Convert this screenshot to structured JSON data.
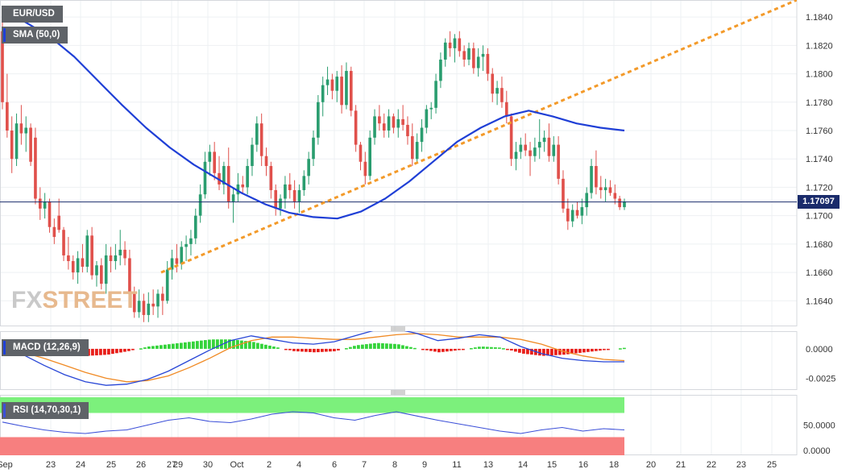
{
  "header": {
    "symbol": "EUR/USD",
    "indicator_main": "SMA (50,0)",
    "indicator_macd": "MACD (12,26,9)",
    "indicator_rsi": "RSI (14,70,30,1)"
  },
  "current_price": "1.17097",
  "watermark": {
    "part1": "FX",
    "part2": "STREET"
  },
  "colors": {
    "up": "#2a9d6f",
    "down": "#e0504b",
    "sma": "#1f3fd6",
    "trendline": "#f39a2a",
    "price_line": "#1a2b6b",
    "macd_line": "#2846d6",
    "signal_line": "#f08a24",
    "hist_pos": "#34d33a",
    "hist_neg": "#e8201b",
    "rsi_line": "#3b4fd8",
    "rsi_overbought": "#7cf07c",
    "rsi_oversold": "#f77f7f"
  },
  "x_axis": {
    "labels": [
      "Sep",
      "23",
      "24",
      "25",
      "26",
      "27",
      "29",
      "30",
      "Oct",
      "2",
      "4",
      "6",
      "7",
      "8",
      "9",
      "11",
      "13",
      "14",
      "15",
      "16",
      "18",
      "20",
      "21",
      "22",
      "23",
      "25"
    ]
  },
  "chart_data": [
    {
      "type": "candlestick",
      "name": "EUR/USD",
      "ylim": [
        1.1622,
        1.1852
      ],
      "y_ticks": [
        "1.1640",
        "1.1660",
        "1.1680",
        "1.1700",
        "1.1720",
        "1.1740",
        "1.1760",
        "1.1780",
        "1.1800",
        "1.1820",
        "1.1840"
      ],
      "candles": [
        [
          1.183,
          1.1838,
          1.1775,
          1.178
        ],
        [
          1.178,
          1.18,
          1.1755,
          1.176
        ],
        [
          1.176,
          1.177,
          1.173,
          1.174
        ],
        [
          1.174,
          1.1772,
          1.1735,
          1.1765
        ],
        [
          1.1765,
          1.1778,
          1.175,
          1.1758
        ],
        [
          1.1758,
          1.177,
          1.1745,
          1.1762
        ],
        [
          1.1762,
          1.1765,
          1.1735,
          1.1738
        ],
        [
          1.1755,
          1.1762,
          1.1708,
          1.1712
        ],
        [
          1.1712,
          1.172,
          1.1697,
          1.1705
        ],
        [
          1.1705,
          1.1716,
          1.1698,
          1.171
        ],
        [
          1.171,
          1.1712,
          1.1688,
          1.1692
        ],
        [
          1.1692,
          1.1698,
          1.168,
          1.1685
        ],
        [
          1.17,
          1.1712,
          1.1688,
          1.169
        ],
        [
          1.169,
          1.1692,
          1.1668,
          1.1672
        ],
        [
          1.1672,
          1.1685,
          1.1662,
          1.1668
        ],
        [
          1.1668,
          1.1672,
          1.1655,
          1.166
        ],
        [
          1.166,
          1.1675,
          1.1652,
          1.167
        ],
        [
          1.167,
          1.168,
          1.166,
          1.1664
        ],
        [
          1.1664,
          1.169,
          1.166,
          1.1686
        ],
        [
          1.1686,
          1.1692,
          1.1655,
          1.1658
        ],
        [
          1.1658,
          1.1668,
          1.165,
          1.1665
        ],
        [
          1.1665,
          1.167,
          1.1648,
          1.1652
        ],
        [
          1.1652,
          1.168,
          1.1645,
          1.1672
        ],
        [
          1.1672,
          1.1678,
          1.166,
          1.1668
        ],
        [
          1.1668,
          1.168,
          1.1662,
          1.1672
        ],
        [
          1.1672,
          1.169,
          1.1665,
          1.1676
        ],
        [
          1.1676,
          1.1682,
          1.1665,
          1.167
        ],
        [
          1.167,
          1.1676,
          1.164,
          1.1645
        ],
        [
          1.1645,
          1.165,
          1.1628,
          1.1632
        ],
        [
          1.1632,
          1.1648,
          1.1628,
          1.164
        ],
        [
          1.164,
          1.1645,
          1.1625,
          1.163
        ],
        [
          1.163,
          1.1646,
          1.1625,
          1.1638
        ],
        [
          1.1638,
          1.1648,
          1.163,
          1.1636
        ],
        [
          1.1636,
          1.1648,
          1.1628,
          1.1645
        ],
        [
          1.1645,
          1.165,
          1.163,
          1.164
        ],
        [
          1.164,
          1.1668,
          1.1638,
          1.1662
        ],
        [
          1.1662,
          1.1676,
          1.1655,
          1.167
        ],
        [
          1.167,
          1.168,
          1.166,
          1.1666
        ],
        [
          1.1666,
          1.1682,
          1.1662,
          1.1678
        ],
        [
          1.1678,
          1.1686,
          1.1668,
          1.168
        ],
        [
          1.168,
          1.169,
          1.1672,
          1.1684
        ],
        [
          1.1684,
          1.1705,
          1.168,
          1.17
        ],
        [
          1.17,
          1.1722,
          1.1695,
          1.1715
        ],
        [
          1.1715,
          1.1745,
          1.1712,
          1.1738
        ],
        [
          1.1738,
          1.175,
          1.1728,
          1.1745
        ],
        [
          1.1745,
          1.1752,
          1.1725,
          1.173
        ],
        [
          1.173,
          1.1742,
          1.1718,
          1.1722
        ],
        [
          1.1722,
          1.1738,
          1.1715,
          1.1735
        ],
        [
          1.1735,
          1.1748,
          1.1705,
          1.171
        ],
        [
          1.171,
          1.172,
          1.1695,
          1.1715
        ],
        [
          1.1715,
          1.173,
          1.171,
          1.1722
        ],
        [
          1.1722,
          1.1728,
          1.1716,
          1.172
        ],
        [
          1.172,
          1.174,
          1.1715,
          1.1735
        ],
        [
          1.1735,
          1.1755,
          1.1728,
          1.175
        ],
        [
          1.175,
          1.177,
          1.1745,
          1.1765
        ],
        [
          1.1765,
          1.1772,
          1.1735,
          1.1742
        ],
        [
          1.1742,
          1.1748,
          1.1728,
          1.1735
        ],
        [
          1.1735,
          1.1738,
          1.1712,
          1.1718
        ],
        [
          1.1718,
          1.1722,
          1.17,
          1.1705
        ],
        [
          1.1705,
          1.1715,
          1.17,
          1.1712
        ],
        [
          1.1712,
          1.1728,
          1.1705,
          1.1722
        ],
        [
          1.1722,
          1.173,
          1.1712,
          1.1718
        ],
        [
          1.1718,
          1.1725,
          1.1705,
          1.171
        ],
        [
          1.171,
          1.1722,
          1.1702,
          1.1718
        ],
        [
          1.1718,
          1.1732,
          1.1714,
          1.1728
        ],
        [
          1.1728,
          1.1745,
          1.1722,
          1.174
        ],
        [
          1.174,
          1.176,
          1.1735,
          1.1755
        ],
        [
          1.1755,
          1.1785,
          1.175,
          1.178
        ],
        [
          1.178,
          1.1798,
          1.177,
          1.1792
        ],
        [
          1.1792,
          1.1805,
          1.1785,
          1.1796
        ],
        [
          1.1796,
          1.18,
          1.1782,
          1.1788
        ],
        [
          1.1788,
          1.1802,
          1.178,
          1.1798
        ],
        [
          1.1798,
          1.1806,
          1.1772,
          1.1778
        ],
        [
          1.1778,
          1.1808,
          1.1775,
          1.1802
        ],
        [
          1.1802,
          1.1805,
          1.177,
          1.1774
        ],
        [
          1.1774,
          1.1778,
          1.1745,
          1.175
        ],
        [
          1.175,
          1.1752,
          1.1732,
          1.1738
        ],
        [
          1.1738,
          1.1745,
          1.1722,
          1.1728
        ],
        [
          1.1728,
          1.176,
          1.1725,
          1.1755
        ],
        [
          1.1755,
          1.1775,
          1.175,
          1.177
        ],
        [
          1.177,
          1.1778,
          1.176,
          1.1765
        ],
        [
          1.1765,
          1.1772,
          1.1755,
          1.176
        ],
        [
          1.176,
          1.1775,
          1.1755,
          1.177
        ],
        [
          1.177,
          1.1772,
          1.1758,
          1.1762
        ],
        [
          1.1762,
          1.1775,
          1.1755,
          1.1768
        ],
        [
          1.1768,
          1.1778,
          1.176,
          1.1764
        ],
        [
          1.1764,
          1.177,
          1.175,
          1.1756
        ],
        [
          1.1756,
          1.1765,
          1.1735,
          1.174
        ],
        [
          1.174,
          1.1758,
          1.1738,
          1.1752
        ],
        [
          1.1752,
          1.1768,
          1.1745,
          1.1762
        ],
        [
          1.1762,
          1.1778,
          1.1758,
          1.1775
        ],
        [
          1.1775,
          1.178,
          1.1768,
          1.1776
        ],
        [
          1.1776,
          1.18,
          1.1772,
          1.1795
        ],
        [
          1.1795,
          1.1815,
          1.179,
          1.181
        ],
        [
          1.181,
          1.1825,
          1.1805,
          1.1822
        ],
        [
          1.1822,
          1.183,
          1.1812,
          1.1818
        ],
        [
          1.1818,
          1.1828,
          1.1808,
          1.1825
        ],
        [
          1.1825,
          1.183,
          1.1812,
          1.1816
        ],
        [
          1.1816,
          1.182,
          1.1805,
          1.181
        ],
        [
          1.181,
          1.1822,
          1.1806,
          1.1818
        ],
        [
          1.1818,
          1.1822,
          1.18,
          1.1804
        ],
        [
          1.1804,
          1.1818,
          1.1798,
          1.1812
        ],
        [
          1.1812,
          1.182,
          1.1802,
          1.1814
        ],
        [
          1.1814,
          1.1818,
          1.1795,
          1.18
        ],
        [
          1.18,
          1.1804,
          1.178,
          1.1786
        ],
        [
          1.1786,
          1.1795,
          1.1778,
          1.179
        ],
        [
          1.179,
          1.1798,
          1.1776,
          1.178
        ],
        [
          1.178,
          1.1788,
          1.1765,
          1.177
        ],
        [
          1.177,
          1.1772,
          1.1735,
          1.174
        ],
        [
          1.174,
          1.1752,
          1.1732,
          1.1745
        ],
        [
          1.1745,
          1.1755,
          1.174,
          1.175
        ],
        [
          1.175,
          1.1758,
          1.1742,
          1.1746
        ],
        [
          1.1746,
          1.1752,
          1.1728,
          1.1742
        ],
        [
          1.1742,
          1.1755,
          1.1738,
          1.1748
        ],
        [
          1.1748,
          1.1768,
          1.174,
          1.1752
        ],
        [
          1.1752,
          1.176,
          1.1745,
          1.1755
        ],
        [
          1.1755,
          1.1765,
          1.1738,
          1.1742
        ],
        [
          1.1742,
          1.1756,
          1.1738,
          1.175
        ],
        [
          1.175,
          1.1756,
          1.1722,
          1.1726
        ],
        [
          1.1726,
          1.1732,
          1.1702,
          1.1705
        ],
        [
          1.1705,
          1.1712,
          1.169,
          1.1696
        ],
        [
          1.1696,
          1.1708,
          1.1692,
          1.1704
        ],
        [
          1.1704,
          1.171,
          1.1698,
          1.17
        ],
        [
          1.17,
          1.1712,
          1.1694,
          1.1706
        ],
        [
          1.1706,
          1.172,
          1.17,
          1.1716
        ],
        [
          1.1716,
          1.174,
          1.1712,
          1.1735
        ],
        [
          1.1735,
          1.1746,
          1.1715,
          1.172
        ],
        [
          1.172,
          1.1728,
          1.1712,
          1.1718
        ],
        [
          1.1718,
          1.1726,
          1.171,
          1.172
        ],
        [
          1.172,
          1.1725,
          1.1714,
          1.1716
        ],
        [
          1.1716,
          1.1722,
          1.1708,
          1.1712
        ],
        [
          1.1712,
          1.1714,
          1.1704,
          1.1706
        ],
        [
          1.1706,
          1.1712,
          1.1704,
          1.171
        ]
      ],
      "sma": [
        1.1845,
        1.1836,
        1.1826,
        1.1812,
        1.1795,
        1.1778,
        1.1762,
        1.1748,
        1.1736,
        1.1726,
        1.1716,
        1.1708,
        1.1702,
        1.1699,
        1.1698,
        1.1703,
        1.1712,
        1.1724,
        1.1738,
        1.1752,
        1.1762,
        1.177,
        1.1774,
        1.177,
        1.1765,
        1.1762,
        1.176
      ],
      "trendline": [
        [
          1.166,
          1.1852
        ]
      ],
      "current_price": 1.17097
    },
    {
      "type": "macd",
      "name": "MACD (12,26,9)",
      "ylim": [
        -0.0035,
        0.0015
      ],
      "y_ticks": [
        "0.0000",
        "-0.0025"
      ],
      "macd": [
        0.0006,
        -0.0005,
        -0.0014,
        -0.0022,
        -0.0028,
        -0.0031,
        -0.003,
        -0.0026,
        -0.0019,
        -0.001,
        -0.0001,
        0.0007,
        0.0011,
        0.0008,
        0.0005,
        0.0004,
        0.0006,
        0.0011,
        0.0016,
        0.0017,
        0.0013,
        0.0007,
        0.0009,
        0.0012,
        0.001,
        0.0002,
        -0.0004,
        -0.0008,
        -0.001,
        -0.0011,
        -0.0011
      ],
      "signal": [
        0.0001,
        -0.0003,
        -0.0008,
        -0.0014,
        -0.002,
        -0.0025,
        -0.0028,
        -0.0027,
        -0.0023,
        -0.0016,
        -0.0008,
        0.0001,
        0.0007,
        0.001,
        0.001,
        0.0009,
        0.0008,
        0.0008,
        0.001,
        0.0012,
        0.0013,
        0.0012,
        0.001,
        0.001,
        0.001,
        0.0008,
        0.0004,
        -0.0002,
        -0.0006,
        -0.0009,
        -0.001
      ],
      "histogram": [
        0.0,
        -0.0003,
        -0.0005,
        -0.0006,
        -0.0006,
        -0.0005,
        -0.0002,
        0.0002,
        0.0004,
        0.0006,
        0.0008,
        0.0008,
        0.0006,
        0.0002,
        -0.0002,
        -0.0003,
        -0.0002,
        0.0003,
        0.0005,
        0.0004,
        0.0,
        -0.0003,
        -0.0001,
        0.0002,
        0.0001,
        -0.0004,
        -0.0006,
        -0.0005,
        -0.0003,
        -0.0001,
        0.0001
      ]
    },
    {
      "type": "rsi",
      "name": "RSI (14,70,30,1)",
      "ylim": [
        0,
        100
      ],
      "y_ticks": [
        "50.0000",
        "0.0000"
      ],
      "overbought": 70,
      "oversold": 30,
      "values": [
        55,
        48,
        42,
        38,
        36,
        40,
        42,
        50,
        58,
        62,
        56,
        54,
        60,
        68,
        72,
        70,
        62,
        58,
        66,
        72,
        65,
        58,
        52,
        46,
        40,
        36,
        42,
        46,
        40,
        44,
        42
      ]
    }
  ]
}
